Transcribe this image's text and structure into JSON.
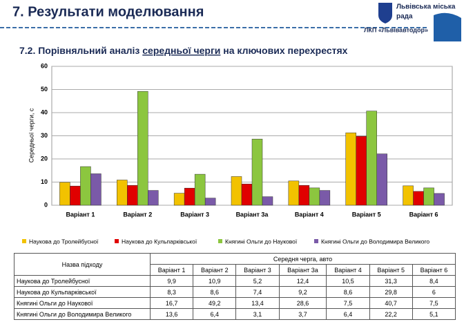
{
  "header": {
    "title": "7. Результати моделювання",
    "org_line1": "Львівська міська",
    "org_line2": "рада",
    "company": "ЛКП «Львівавтодор»"
  },
  "subtitle": {
    "before": "7.2. Порівняльний аналіз ",
    "underlined": "середньої черги",
    "after": " на ключових перехрестях"
  },
  "chart_data": {
    "type": "bar",
    "y_label": "Середньої черги, с",
    "categories": [
      "Варіант 1",
      "Варіант 2",
      "Варіант 3",
      "Варіант 3а",
      "Варіант 4",
      "Варіант 5",
      "Варіант 6"
    ],
    "series": [
      {
        "name": "Наукова до Тролейбусної",
        "color": "#f2c200",
        "values": [
          9.9,
          10.9,
          5.2,
          12.4,
          10.5,
          31.3,
          8.4
        ]
      },
      {
        "name": "Наукова до Кульпарківської",
        "color": "#e00000",
        "values": [
          8.3,
          8.6,
          7.4,
          9.2,
          8.6,
          29.8,
          6
        ]
      },
      {
        "name": "Княгині Ольги до Наукової",
        "color": "#8cc63f",
        "values": [
          16.7,
          49.2,
          13.4,
          28.6,
          7.5,
          40.7,
          7.5
        ]
      },
      {
        "name": "Княгині Ольги до Володимира Великого",
        "color": "#7a5aa8",
        "values": [
          13.6,
          6.4,
          3.1,
          3.7,
          6.4,
          22.2,
          5.1
        ]
      }
    ],
    "ylim": [
      0,
      60
    ],
    "yticks": [
      0,
      10,
      20,
      30,
      40,
      50,
      60
    ],
    "grid": true
  },
  "table": {
    "row_header": "Назва підходу",
    "group_header": "Середня черга, авто",
    "columns": [
      "Варіант 1",
      "Варіант 2",
      "Варіант 3",
      "Варіант 3а",
      "Варіант 4",
      "Варіант 5",
      "Варіант 6"
    ],
    "rows": [
      [
        "Наукова до Тролейбусної",
        "9,9",
        "10,9",
        "5,2",
        "12,4",
        "10,5",
        "31,3",
        "8,4"
      ],
      [
        "Наукова до Кульпарківської",
        "8,3",
        "8,6",
        "7,4",
        "9,2",
        "8,6",
        "29,8",
        "6"
      ],
      [
        "Княгині Ольги до Наукової",
        "16,7",
        "49,2",
        "13,4",
        "28,6",
        "7,5",
        "40,7",
        "7,5"
      ],
      [
        "Княгині Ольги до Володимира Великого",
        "13,6",
        "6,4",
        "3,1",
        "3,7",
        "6,4",
        "22,2",
        "5,1"
      ]
    ]
  }
}
